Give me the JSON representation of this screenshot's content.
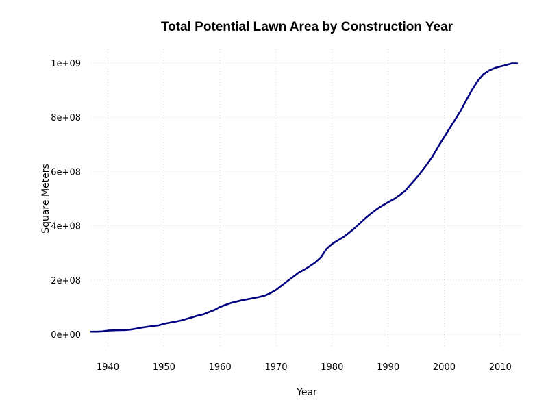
{
  "chart_data": {
    "type": "line",
    "title": "Total Potential Lawn Area by Construction Year",
    "xlabel": "Year",
    "ylabel": "Square Meters",
    "xlim": [
      1937,
      2014
    ],
    "ylim": [
      -50000000,
      1050000000
    ],
    "grid": true,
    "x_ticks": [
      1940,
      1950,
      1960,
      1970,
      1980,
      1990,
      2000,
      2010
    ],
    "x_tick_labels": [
      "1940",
      "1950",
      "1960",
      "1970",
      "1980",
      "1990",
      "2000",
      "2010"
    ],
    "y_ticks": [
      0,
      200000000,
      400000000,
      600000000,
      800000000,
      1000000000
    ],
    "y_tick_labels": [
      "0e+00",
      "2e+08",
      "4e+08",
      "6e+08",
      "8e+08",
      "1e+09"
    ],
    "series": [
      {
        "color": "#000080",
        "x": [
          1937,
          1938,
          1939,
          1940,
          1941,
          1942,
          1943,
          1944,
          1945,
          1946,
          1947,
          1948,
          1949,
          1950,
          1951,
          1952,
          1953,
          1954,
          1955,
          1956,
          1957,
          1958,
          1959,
          1960,
          1961,
          1962,
          1963,
          1964,
          1965,
          1966,
          1967,
          1968,
          1969,
          1970,
          1971,
          1972,
          1973,
          1974,
          1975,
          1976,
          1977,
          1978,
          1979,
          1980,
          1981,
          1982,
          1983,
          1984,
          1985,
          1986,
          1987,
          1988,
          1989,
          1990,
          1991,
          1992,
          1993,
          1994,
          1995,
          1996,
          1997,
          1998,
          1999,
          2000,
          2001,
          2002,
          2003,
          2004,
          2005,
          2006,
          2007,
          2008,
          2009,
          2010,
          2011,
          2012,
          2013
        ],
        "y": [
          10000000,
          10000000,
          11000000,
          14000000,
          15000000,
          15500000,
          16000000,
          17500000,
          21000000,
          25000000,
          28000000,
          31000000,
          33000000,
          39000000,
          43000000,
          47000000,
          51000000,
          57000000,
          63000000,
          69000000,
          74000000,
          82000000,
          90000000,
          101000000,
          109000000,
          116000000,
          121000000,
          126000000,
          130000000,
          134000000,
          138000000,
          143000000,
          152000000,
          164000000,
          180000000,
          196000000,
          211000000,
          227000000,
          238000000,
          251000000,
          265000000,
          284000000,
          315000000,
          333000000,
          346000000,
          358000000,
          374000000,
          391000000,
          410000000,
          429000000,
          446000000,
          462000000,
          475000000,
          487000000,
          498000000,
          512000000,
          528000000,
          552000000,
          575000000,
          601000000,
          628000000,
          658000000,
          694000000,
          727000000,
          760000000,
          793000000,
          826000000,
          865000000,
          902000000,
          934000000,
          958000000,
          972000000,
          981000000,
          987000000,
          992000000,
          998000000,
          998000000
        ]
      }
    ]
  }
}
